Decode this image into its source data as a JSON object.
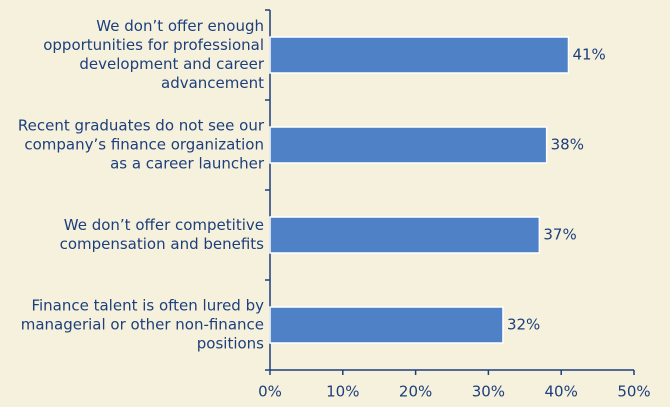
{
  "chart_data": {
    "type": "barh",
    "categories": [
      "We don’t offer enough opportunities for professional development and career advancement",
      "Recent graduates do not see our company’s finance organization as a career launcher",
      "We don’t offer competitive compensation and benefits",
      "Finance talent is often lured by managerial or other non-finance positions"
    ],
    "values": [
      41,
      38,
      37,
      32
    ],
    "value_labels": [
      "41%",
      "38%",
      "37%",
      "32%"
    ],
    "color": "#4f81c7",
    "xlim": [
      0,
      50
    ],
    "xticks": [
      {
        "value": 0,
        "label": "0%"
      },
      {
        "value": 10,
        "label": "10%"
      },
      {
        "value": 20,
        "label": "20%"
      },
      {
        "value": 30,
        "label": "30%"
      },
      {
        "value": 40,
        "label": "40%"
      },
      {
        "value": 50,
        "label": "50%"
      }
    ]
  }
}
